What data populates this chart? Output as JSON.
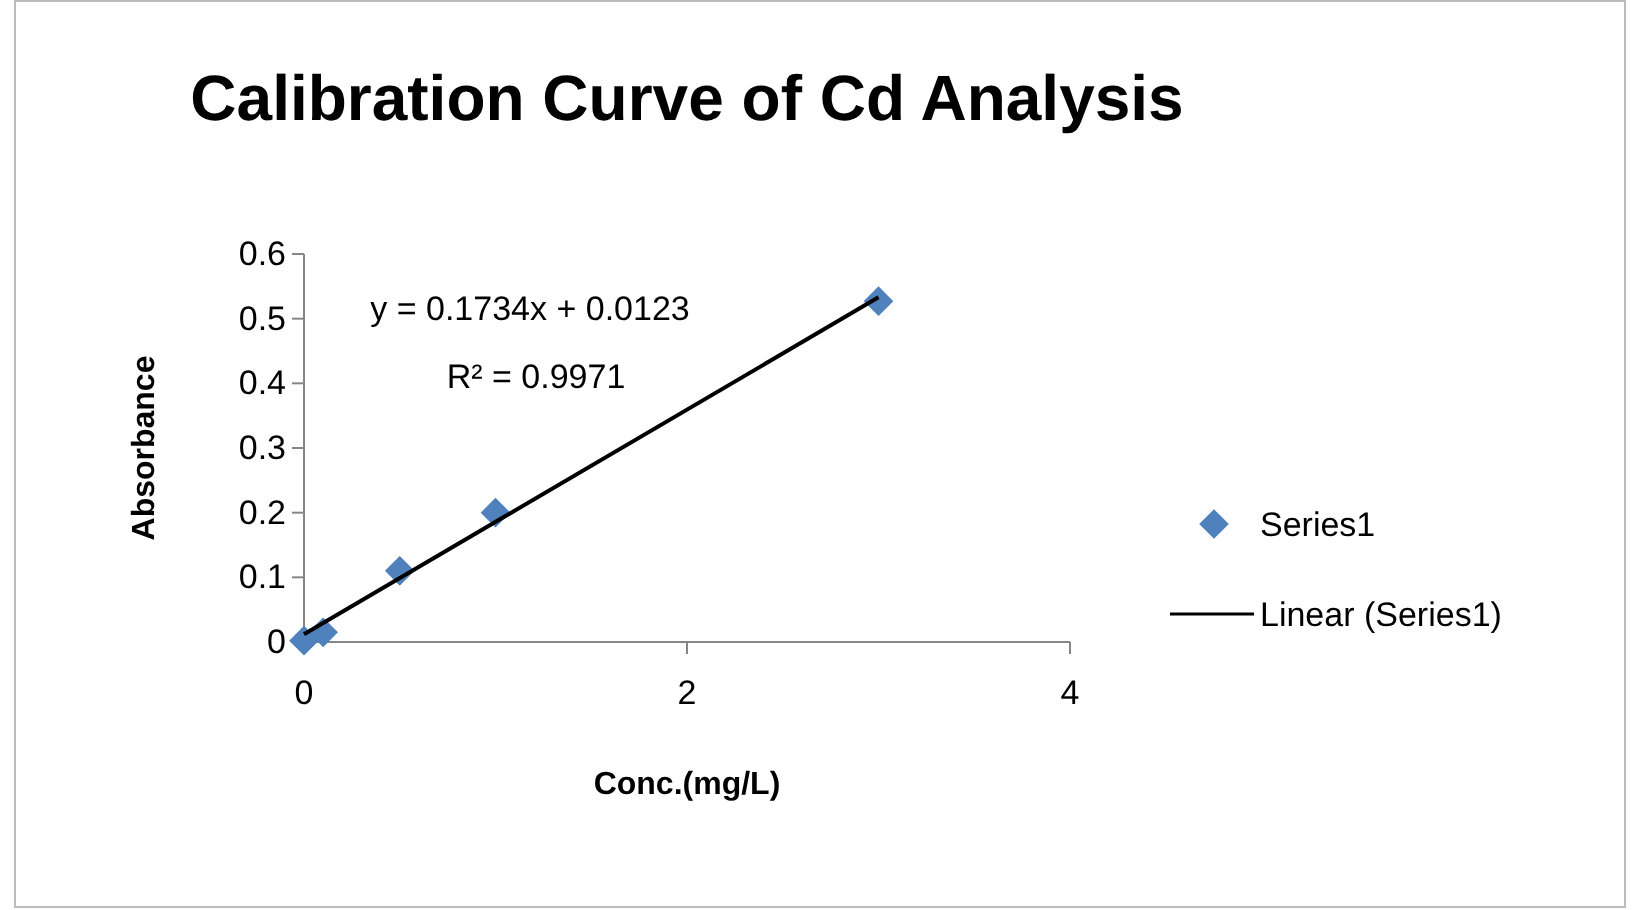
{
  "chart_data": {
    "type": "scatter",
    "title": "Calibration Curve of Cd Analysis",
    "xlabel": "Conc.(mg/L)",
    "ylabel": "Absorbance",
    "series": [
      {
        "name": "Series1",
        "color": "#4f81bd",
        "marker": "diamond",
        "x": [
          0,
          0.05,
          0.1,
          0.5,
          1,
          3
        ],
        "values": [
          0.002,
          null,
          0.015,
          0.11,
          0.2,
          0.527
        ]
      },
      {
        "name": "Linear (Series1)",
        "type": "line",
        "color": "#000000",
        "marker": "none",
        "line_style": "solid",
        "x": [
          0,
          3
        ],
        "values": [
          0.012,
          0.533
        ]
      }
    ],
    "xlim": [
      0,
      4
    ],
    "xticks": [
      0,
      2,
      4
    ],
    "ylim": [
      0,
      0.6
    ],
    "yticks": [
      0,
      0.1,
      0.2,
      0.3,
      0.4,
      0.5,
      0.6
    ],
    "grid": false,
    "legend": "right",
    "annotations": [
      "y = 0.1734x + 0.0123",
      "R² = 0.9971"
    ]
  }
}
